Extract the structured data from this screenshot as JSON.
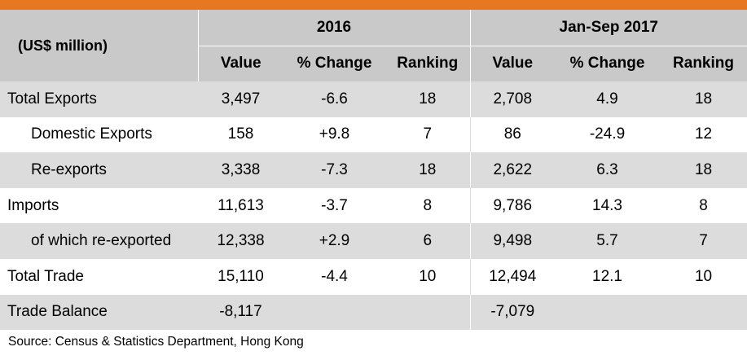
{
  "header": {
    "unit_label": "(US$ million)",
    "period_1": "2016",
    "period_2": "Jan-Sep 2017",
    "col_value": "Value",
    "col_change": "% Change",
    "col_ranking": "Ranking"
  },
  "rows": [
    {
      "label": "Total Exports",
      "v1": "3,497",
      "c1": "-6.6",
      "r1": "18",
      "v2": "2,708",
      "c2": "4.9",
      "r2": "18"
    },
    {
      "label": "Domestic Exports",
      "v1": "158",
      "c1": "+9.8",
      "r1": "7",
      "v2": "86",
      "c2": "-24.9",
      "r2": "12"
    },
    {
      "label": "Re-exports",
      "v1": "3,338",
      "c1": "-7.3",
      "r1": "18",
      "v2": "2,622",
      "c2": "6.3",
      "r2": "18"
    },
    {
      "label": "Imports",
      "v1": "11,613",
      "c1": "-3.7",
      "r1": "8",
      "v2": "9,786",
      "c2": "14.3",
      "r2": "8"
    },
    {
      "label": "of which re-exported",
      "v1": "12,338",
      "c1": "+2.9",
      "r1": "6",
      "v2": "9,498",
      "c2": "5.7",
      "r2": "7"
    },
    {
      "label": "Total Trade",
      "v1": "15,110",
      "c1": "-4.4",
      "r1": "10",
      "v2": "12,494",
      "c2": "12.1",
      "r2": "10"
    },
    {
      "label": "Trade Balance",
      "v1": "-8,117",
      "c1": "",
      "r1": "",
      "v2": "-7,079",
      "c2": "",
      "r2": ""
    }
  ],
  "footer": {
    "source": "Source: Census & Statistics Department, Hong Kong"
  },
  "colors": {
    "accent_bar": "#e87722",
    "header_bg": "#c9c9c9",
    "row_shade": "#dcdcdc"
  }
}
